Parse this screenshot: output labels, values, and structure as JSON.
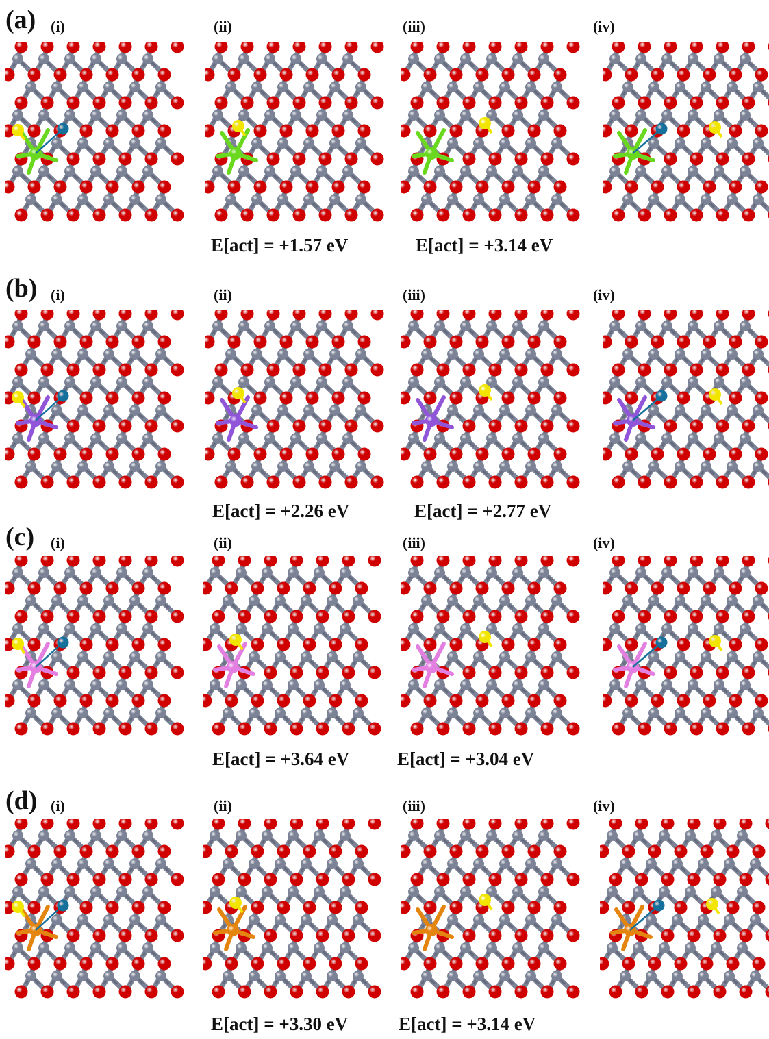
{
  "figure": {
    "panel_labels": [
      "(i)",
      "(ii)",
      "(iii)",
      "(iv)"
    ],
    "rows": [
      {
        "label": "(a)",
        "dopant": "green",
        "energies": [
          "E[act] = +1.57 eV",
          "E[act] = +3.14 eV"
        ]
      },
      {
        "label": "(b)",
        "dopant": "purple",
        "energies": [
          "E[act] = +2.26 eV",
          "E[act] = +2.77 eV"
        ]
      },
      {
        "label": "(c)",
        "dopant": "pink",
        "energies": [
          "E[act] = +3.64 eV",
          "E[act] = +3.04 eV"
        ]
      },
      {
        "label": "(d)",
        "dopant": "orange",
        "energies": [
          "E[act] = +3.30 eV",
          "E[act] = +3.14 eV"
        ]
      }
    ]
  },
  "colors": {
    "oxygen": "#d10000",
    "lattice_metal": "#7c8396",
    "bond_dark": "#3a3f4c",
    "migrating_atom": "#f2e600",
    "vacancy_atom": "#15709c",
    "dopant_green": "#6ad81e",
    "dopant_purple": "#9055d8",
    "dopant_pink": "#e37fe0",
    "dopant_orange": "#e4850f"
  }
}
